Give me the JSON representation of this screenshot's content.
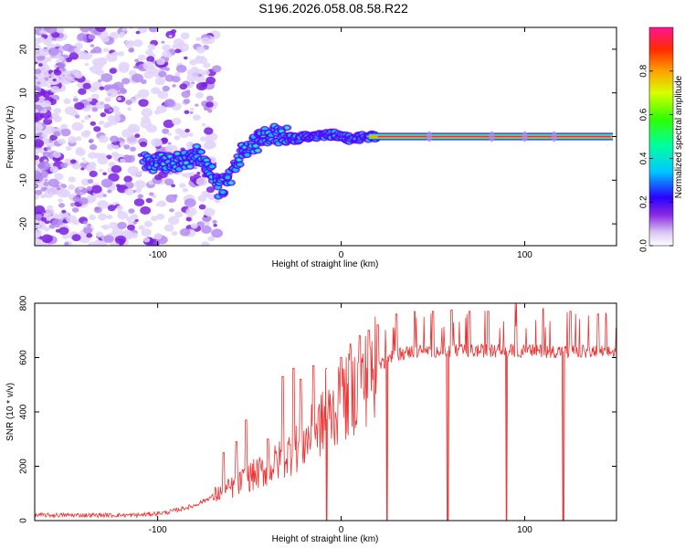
{
  "figure_title": "S196.2026.058.08.58.R22",
  "chart_data": [
    {
      "type": "heatmap",
      "name": "spectrogram",
      "xlabel": "Height of straight line (km)",
      "ylabel": "Frequency (Hz)",
      "xlim": [
        -167,
        150
      ],
      "ylim": [
        -25,
        25
      ],
      "xticks": [
        -100,
        0,
        100
      ],
      "yticks": [
        -20,
        -10,
        0,
        10,
        20
      ],
      "xtick_labels": [
        "-100",
        "0",
        "100"
      ],
      "ytick_labels": [
        "-20",
        "-10",
        "0",
        "10",
        "20"
      ],
      "ridge_track": [
        {
          "x": -107,
          "y": -6
        },
        {
          "x": -95,
          "y": -6
        },
        {
          "x": -85,
          "y": -5.5
        },
        {
          "x": -78,
          "y": -4
        },
        {
          "x": -72,
          "y": -7
        },
        {
          "x": -66,
          "y": -12
        },
        {
          "x": -60,
          "y": -9
        },
        {
          "x": -55,
          "y": -4
        },
        {
          "x": -48,
          "y": -2
        },
        {
          "x": -42,
          "y": 0
        },
        {
          "x": -35,
          "y": 0.5
        },
        {
          "x": -25,
          "y": -0.5
        },
        {
          "x": -15,
          "y": 0.3
        },
        {
          "x": -5,
          "y": 0.5
        },
        {
          "x": 5,
          "y": -0.5
        },
        {
          "x": 15,
          "y": 0
        },
        {
          "x": 50,
          "y": 0
        },
        {
          "x": 100,
          "y": 0
        },
        {
          "x": 148,
          "y": 0
        }
      ],
      "colorbar": {
        "label": "Normalized spectral amplitude",
        "range": [
          0,
          1
        ],
        "ticks": [
          0.0,
          0.2,
          0.4,
          0.6,
          0.8
        ],
        "tick_labels": [
          "0.0",
          "0.2",
          "0.4",
          "0.6",
          "0.8"
        ]
      }
    },
    {
      "type": "line",
      "name": "snr",
      "xlabel": "Height of straight line (km)",
      "ylabel": "SNR (10 * v/v)",
      "xlim": [
        -167,
        150
      ],
      "ylim": [
        0,
        800
      ],
      "xticks": [
        -100,
        0,
        100
      ],
      "yticks": [
        0,
        200,
        400,
        600,
        800
      ],
      "xtick_labels": [
        "-100",
        "0",
        "100"
      ],
      "ytick_labels": [
        "0",
        "200",
        "400",
        "600",
        "800"
      ],
      "color": "#ee3333",
      "envelope": [
        {
          "x": -167,
          "y": 20
        },
        {
          "x": -110,
          "y": 20
        },
        {
          "x": -95,
          "y": 30
        },
        {
          "x": -80,
          "y": 55
        },
        {
          "x": -70,
          "y": 90
        },
        {
          "x": -60,
          "y": 120
        },
        {
          "x": -50,
          "y": 160
        },
        {
          "x": -40,
          "y": 190
        },
        {
          "x": -30,
          "y": 240
        },
        {
          "x": -20,
          "y": 290
        },
        {
          "x": -10,
          "y": 360
        },
        {
          "x": 0,
          "y": 430
        },
        {
          "x": 10,
          "y": 500
        },
        {
          "x": 20,
          "y": 570
        },
        {
          "x": 30,
          "y": 610
        },
        {
          "x": 40,
          "y": 625
        },
        {
          "x": 60,
          "y": 625
        },
        {
          "x": 100,
          "y": 625
        },
        {
          "x": 150,
          "y": 620
        }
      ],
      "spikes": [
        {
          "x": -64,
          "y": 250
        },
        {
          "x": -57,
          "y": 290
        },
        {
          "x": -52,
          "y": 370
        },
        {
          "x": -40,
          "y": 300
        },
        {
          "x": -32,
          "y": 530
        },
        {
          "x": -26,
          "y": 560
        },
        {
          "x": -22,
          "y": 520
        },
        {
          "x": -15,
          "y": 570
        },
        {
          "x": -8,
          "y": 560
        },
        {
          "x": 0,
          "y": 600
        },
        {
          "x": 5,
          "y": 650
        },
        {
          "x": 10,
          "y": 680
        },
        {
          "x": 15,
          "y": 700
        },
        {
          "x": 20,
          "y": 720
        },
        {
          "x": 30,
          "y": 760
        },
        {
          "x": 40,
          "y": 770
        },
        {
          "x": 50,
          "y": 770
        },
        {
          "x": 60,
          "y": 775
        },
        {
          "x": 70,
          "y": 770
        },
        {
          "x": 80,
          "y": 770
        },
        {
          "x": 95,
          "y": 800
        },
        {
          "x": 110,
          "y": 780
        },
        {
          "x": 125,
          "y": 770
        },
        {
          "x": 140,
          "y": 760
        }
      ],
      "dropouts": [
        {
          "x": -8,
          "y": 0
        },
        {
          "x": 25,
          "y": 0
        },
        {
          "x": 58,
          "y": 0
        },
        {
          "x": 90,
          "y": 0
        },
        {
          "x": 121,
          "y": 0
        }
      ]
    }
  ]
}
